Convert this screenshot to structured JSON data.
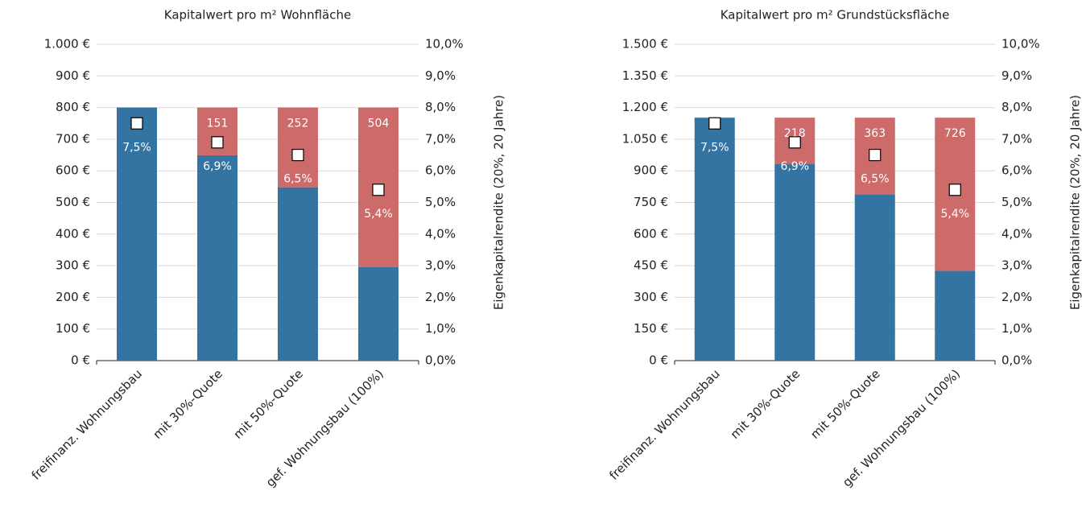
{
  "chart_data": [
    {
      "type": "bar",
      "stacked": true,
      "title": "Kapitalwert pro m² Wohnfläche",
      "y2label": "Eigenkapitalrendite (20%, 20 Jahre)",
      "categories": [
        "freifinanz. Wohnungsbau",
        "mit 30%-Quote",
        "mit 50%-Quote",
        "gef. Wohnungsbau (100%)"
      ],
      "series": [
        {
          "color": "#3474a2",
          "values": [
            800,
            649,
            548,
            296
          ]
        },
        {
          "color": "#cd6a6a",
          "values": [
            null,
            151,
            252,
            504
          ]
        },
        {
          "color": "#ffffff",
          "axis": "y2",
          "marker": "square",
          "values": [
            7.5,
            6.9,
            6.5,
            5.4
          ],
          "value_labels": [
            "7,5%",
            "6,9%",
            "6,5%",
            "5,4%"
          ]
        }
      ],
      "ylim": [
        0,
        1000
      ],
      "yticks": [
        {
          "value": 0,
          "label": "0 €"
        },
        {
          "value": 100,
          "label": "100 €"
        },
        {
          "value": 200,
          "label": "200 €"
        },
        {
          "value": 300,
          "label": "300 €"
        },
        {
          "value": 400,
          "label": "400 €"
        },
        {
          "value": 500,
          "label": "500 €"
        },
        {
          "value": 600,
          "label": "600 €"
        },
        {
          "value": 700,
          "label": "700 €"
        },
        {
          "value": 800,
          "label": "800 €"
        },
        {
          "value": 900,
          "label": "900 €"
        },
        {
          "value": 1000,
          "label": "1.000 €"
        }
      ],
      "y2lim": [
        0,
        10
      ],
      "y2ticks": [
        {
          "value": 0,
          "label": "0,0%"
        },
        {
          "value": 1,
          "label": "1,0%"
        },
        {
          "value": 2,
          "label": "2,0%"
        },
        {
          "value": 3,
          "label": "3,0%"
        },
        {
          "value": 4,
          "label": "4,0%"
        },
        {
          "value": 5,
          "label": "5,0%"
        },
        {
          "value": 6,
          "label": "6,0%"
        },
        {
          "value": 7,
          "label": "7,0%"
        },
        {
          "value": 8,
          "label": "8,0%"
        },
        {
          "value": 9,
          "label": "9,0%"
        },
        {
          "value": 10,
          "label": "10,0%"
        }
      ],
      "grid": true
    },
    {
      "type": "bar",
      "stacked": true,
      "title": "Kapitalwert pro m² Grundstücksfläche",
      "y2label": "Eigenkapitalrendite (20%, 20 Jahre)",
      "categories": [
        "freifinanz. Wohnungsbau",
        "mit 30%-Quote",
        "mit 50%-Quote",
        "gef. Wohnungsbau (100%)"
      ],
      "series": [
        {
          "color": "#3474a2",
          "values": [
            1152,
            934,
            789,
            426
          ]
        },
        {
          "color": "#cd6a6a",
          "values": [
            null,
            218,
            363,
            726
          ]
        },
        {
          "color": "#ffffff",
          "axis": "y2",
          "marker": "square",
          "values": [
            7.5,
            6.9,
            6.5,
            5.4
          ],
          "value_labels": [
            "7,5%",
            "6,9%",
            "6,5%",
            "5,4%"
          ]
        }
      ],
      "ylim": [
        0,
        1500
      ],
      "yticks": [
        {
          "value": 0,
          "label": "0 €"
        },
        {
          "value": 150,
          "label": "150 €"
        },
        {
          "value": 300,
          "label": "300 €"
        },
        {
          "value": 450,
          "label": "450 €"
        },
        {
          "value": 600,
          "label": "600 €"
        },
        {
          "value": 750,
          "label": "750 €"
        },
        {
          "value": 900,
          "label": "900 €"
        },
        {
          "value": 1050,
          "label": "1.050 €"
        },
        {
          "value": 1200,
          "label": "1.200 €"
        },
        {
          "value": 1350,
          "label": "1.350 €"
        },
        {
          "value": 1500,
          "label": "1.500 €"
        }
      ],
      "y2lim": [
        0,
        10
      ],
      "y2ticks": [
        {
          "value": 0,
          "label": "0,0%"
        },
        {
          "value": 1,
          "label": "1,0%"
        },
        {
          "value": 2,
          "label": "2,0%"
        },
        {
          "value": 3,
          "label": "3,0%"
        },
        {
          "value": 4,
          "label": "4,0%"
        },
        {
          "value": 5,
          "label": "5,0%"
        },
        {
          "value": 6,
          "label": "6,0%"
        },
        {
          "value": 7,
          "label": "7,0%"
        },
        {
          "value": 8,
          "label": "8,0%"
        },
        {
          "value": 9,
          "label": "9,0%"
        },
        {
          "value": 10,
          "label": "10,0%"
        }
      ],
      "grid": true
    }
  ]
}
